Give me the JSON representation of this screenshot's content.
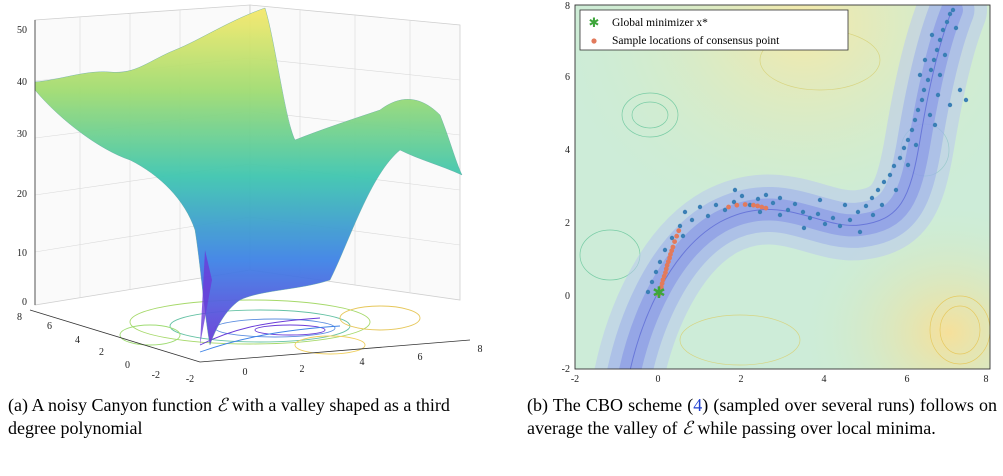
{
  "colors": {
    "accent_link": "#1f3fd0",
    "dot_trajectory": "#3a7fb5",
    "dot_consensus": "#e27a5c",
    "global_min": "#3ea63b"
  },
  "figure_a": {
    "z_ticks": [
      "50",
      "40",
      "30",
      "20",
      "10",
      "0"
    ],
    "y_ticks": [
      "8",
      "6",
      "4",
      "2",
      "0",
      "-2"
    ],
    "x_ticks": [
      "-2",
      "0",
      "2",
      "4",
      "6",
      "8"
    ],
    "caption_prefix": "(a) A noisy Canyon function ",
    "caption_symbol": "ℰ",
    "caption_suffix": " with a valley shaped as a third degree polynomial"
  },
  "figure_b": {
    "legend": {
      "global_min": "Global minimizer x*",
      "consensus": "Sample locations of consensus point"
    },
    "caption_p1": "(b) The CBO scheme (",
    "caption_ref": "4",
    "caption_p2": ") (sampled over several runs) follows on average the valley of ",
    "caption_symbol": "ℰ",
    "caption_p3": " while passing over local minima.",
    "chart_data": {
      "type": "scatter",
      "xlim": [
        -2,
        8
      ],
      "ylim": [
        -2,
        8
      ],
      "x_ticks": [
        "-2",
        "0",
        "2",
        "4",
        "6",
        "8"
      ],
      "y_ticks": [
        "8",
        "6",
        "4",
        "2",
        "0",
        "-2"
      ],
      "global_minimizer": [
        0,
        0
      ],
      "series": [
        {
          "name": "Sample locations of consensus point",
          "x": [
            0.02,
            0.05,
            0.08,
            0.1,
            0.12,
            0.15,
            0.18,
            0.2,
            0.22,
            0.25,
            0.28,
            0.3,
            0.33,
            0.36,
            0.4,
            0.45,
            0.5,
            1.7,
            1.9,
            2.1,
            2.3,
            2.4,
            2.5,
            2.6
          ],
          "y": [
            0.05,
            0.15,
            0.25,
            0.35,
            0.45,
            0.55,
            0.65,
            0.75,
            0.85,
            0.95,
            1.05,
            1.15,
            1.25,
            1.35,
            1.5,
            1.65,
            1.8,
            2.45,
            2.5,
            2.52,
            2.5,
            2.48,
            2.45,
            2.42
          ]
        }
      ]
    }
  }
}
